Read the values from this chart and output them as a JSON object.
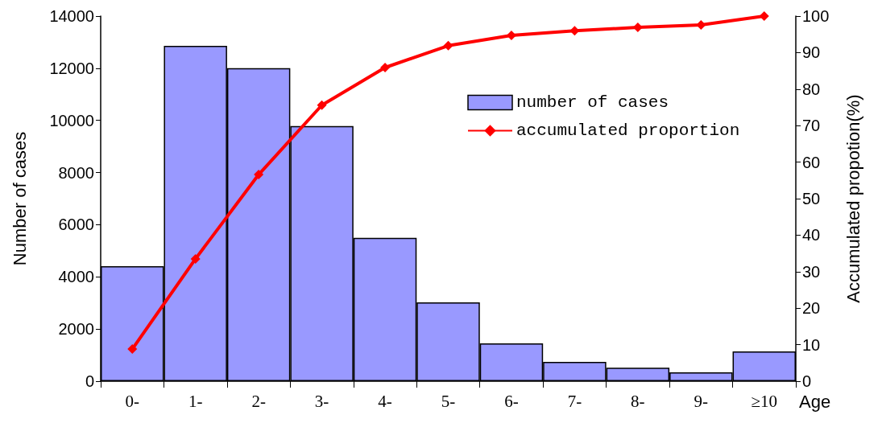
{
  "chart_data": {
    "type": "bar",
    "xlabel": "Age",
    "ylabel": "Number of cases",
    "y2label": "Accumulated propotion(%)",
    "categories": [
      "0-",
      "1-",
      "2-",
      "3-",
      "4-",
      "5-",
      "6-",
      "7-",
      "8-",
      "9-",
      "≥10"
    ],
    "series": [
      {
        "name": "number of cases",
        "color": "#9999ff",
        "values": [
          4410,
          12860,
          12000,
          9780,
          5500,
          3020,
          1450,
          740,
          520,
          340,
          1140
        ]
      },
      {
        "name": "accumulated proportion",
        "type": "line",
        "axis": "y2",
        "color": "#ff0000",
        "marker": "diamond",
        "values": [
          8.8,
          33.5,
          56.6,
          75.6,
          85.9,
          91.9,
          94.7,
          96.0,
          96.9,
          97.6,
          100
        ]
      }
    ],
    "ylim": [
      0,
      14000
    ],
    "yticks": [
      0,
      2000,
      4000,
      6000,
      8000,
      10000,
      12000,
      14000
    ],
    "y2lim": [
      0,
      100
    ],
    "y2ticks": [
      0,
      10,
      20,
      30,
      40,
      50,
      60,
      70,
      80,
      90,
      100
    ],
    "grid": false,
    "legend": "top right"
  }
}
